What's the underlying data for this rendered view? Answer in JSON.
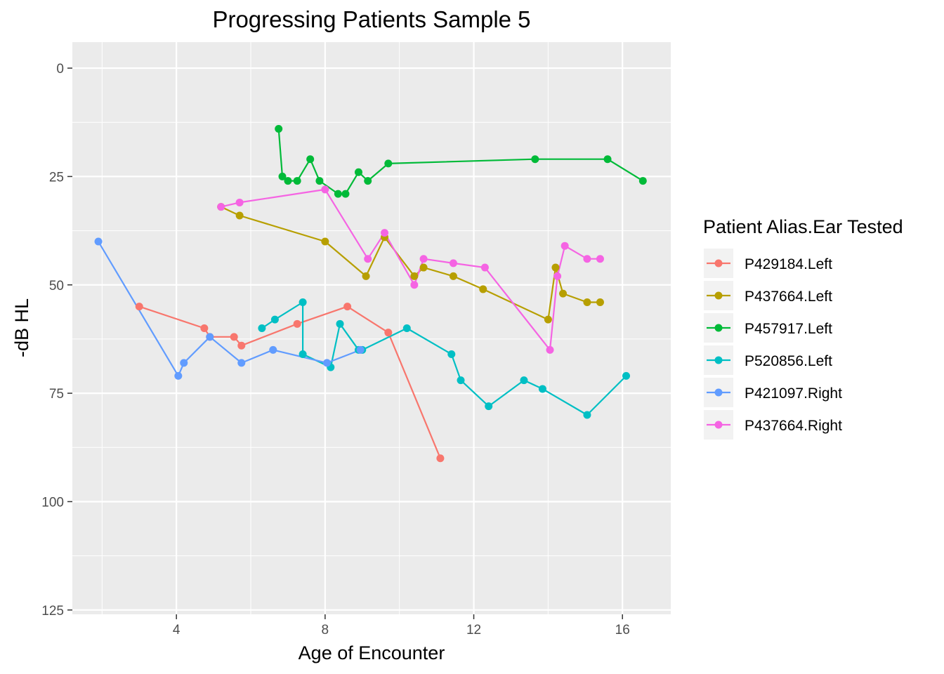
{
  "chart_data": {
    "type": "line",
    "title": "Progressing Patients Sample 5",
    "xlabel": "Age of Encounter",
    "ylabel": "-dB HL",
    "xlim": [
      1.2,
      17.3
    ],
    "ylim": [
      -6,
      126
    ],
    "y_reversed": true,
    "x_ticks": [
      4,
      8,
      12,
      16
    ],
    "y_ticks": [
      0,
      25,
      50,
      75,
      100,
      125
    ],
    "grid": true,
    "legend_title": "Patient Alias.Ear Tested",
    "legend_position": "right",
    "series": [
      {
        "name": "P429184.Left",
        "color": "#F8766D",
        "x": [
          3.0,
          4.75,
          4.9,
          5.55,
          5.75,
          7.25,
          8.6,
          9.7,
          11.1
        ],
        "y": [
          55,
          60,
          62,
          62,
          64,
          59,
          55,
          61,
          90
        ]
      },
      {
        "name": "P437664.Left",
        "color": "#B79F00",
        "x": [
          5.2,
          5.7,
          8.0,
          9.1,
          9.6,
          10.4,
          10.65,
          11.45,
          12.25,
          14.0,
          14.2,
          14.4,
          15.05,
          15.4
        ],
        "y": [
          32,
          34,
          40,
          48,
          39,
          48,
          46,
          48,
          51,
          58,
          46,
          52,
          54,
          54
        ]
      },
      {
        "name": "P457917.Left",
        "color": "#00BA38",
        "x": [
          6.75,
          6.85,
          7.0,
          7.25,
          7.6,
          7.85,
          8.35,
          8.55,
          8.9,
          9.15,
          9.7,
          13.65,
          15.6,
          16.55
        ],
        "y": [
          14,
          25,
          26,
          26,
          21,
          26,
          29,
          29,
          24,
          26,
          22,
          21,
          21,
          26
        ]
      },
      {
        "name": "P520856.Left",
        "color": "#00BFC4",
        "x": [
          6.3,
          6.65,
          7.4,
          7.4,
          8.15,
          8.4,
          8.9,
          9.0,
          10.2,
          11.4,
          11.65,
          12.4,
          13.35,
          13.85,
          15.05,
          16.1
        ],
        "y": [
          60,
          58,
          54,
          66,
          69,
          59,
          65,
          65,
          60,
          66,
          72,
          78,
          72,
          74,
          80,
          71
        ]
      },
      {
        "name": "P421097.Right",
        "color": "#619CFF",
        "x": [
          1.9,
          4.05,
          4.2,
          4.9,
          5.75,
          6.6,
          8.05,
          8.95
        ],
        "y": [
          40,
          71,
          68,
          62,
          68,
          65,
          68,
          65
        ]
      },
      {
        "name": "P437664.Right",
        "color": "#F564E3",
        "x": [
          5.2,
          5.7,
          8.0,
          9.15,
          9.6,
          10.4,
          10.65,
          11.45,
          12.3,
          14.05,
          14.25,
          14.45,
          15.05,
          15.4
        ],
        "y": [
          32,
          31,
          28,
          44,
          38,
          50,
          44,
          45,
          46,
          65,
          48,
          41,
          44,
          44
        ]
      }
    ]
  }
}
